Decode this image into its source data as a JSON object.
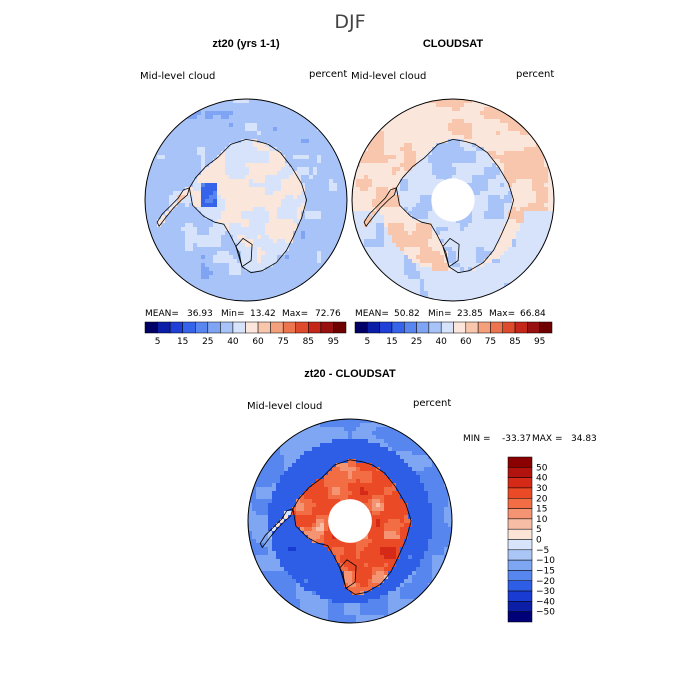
{
  "page_title": "DJF",
  "chart_data": [
    {
      "type": "heatmap",
      "projection": "south-polar-stereographic",
      "title": "zt20 (yrs 1-1)",
      "left_label": "Mid-level cloud",
      "right_label": "percent",
      "stats": {
        "mean_label": "MEAN=",
        "mean": "36.93",
        "min_label": "Min=",
        "min": "13.42",
        "max_label": "Max=",
        "max": "72.76"
      },
      "colorbar": {
        "orientation": "horizontal",
        "levels": [
          5,
          10,
          15,
          20,
          25,
          30,
          40,
          50,
          60,
          70,
          75,
          80,
          85,
          90,
          95
        ],
        "tick_labels": [
          "5",
          "15",
          "25",
          "40",
          "60",
          "75",
          "85",
          "95"
        ],
        "colors": [
          "#000066",
          "#0a1ea8",
          "#1f3fd6",
          "#3563ea",
          "#5a86f0",
          "#7ea4f3",
          "#a8c3f7",
          "#d6e3fb",
          "#fbe6dc",
          "#f8c6ad",
          "#f4a07c",
          "#ec7550",
          "#de4a2c",
          "#c4261a",
          "#981010",
          "#6e0000"
        ]
      },
      "field_description": "mostly 25-40 percent over ocean, 40-60 over East Antarctic plateau",
      "no_data_hole": false
    },
    {
      "type": "heatmap",
      "projection": "south-polar-stereographic",
      "title": "CLOUDSAT",
      "left_label": "Mid-level cloud",
      "right_label": "percent",
      "stats": {
        "mean_label": "MEAN=",
        "mean": "50.82",
        "min_label": "Min=",
        "min": "23.85",
        "max_label": "Max=",
        "max": "66.84"
      },
      "colorbar": {
        "orientation": "horizontal",
        "levels": [
          5,
          10,
          15,
          20,
          25,
          30,
          40,
          50,
          60,
          70,
          75,
          80,
          85,
          90,
          95
        ],
        "tick_labels": [
          "5",
          "15",
          "25",
          "40",
          "60",
          "75",
          "85",
          "95"
        ],
        "colors": [
          "#000066",
          "#0a1ea8",
          "#1f3fd6",
          "#3563ea",
          "#5a86f0",
          "#7ea4f3",
          "#a8c3f7",
          "#d6e3fb",
          "#fbe6dc",
          "#f8c6ad",
          "#f4a07c",
          "#ec7550",
          "#de4a2c",
          "#c4261a",
          "#981010",
          "#6e0000"
        ]
      },
      "field_description": "mostly 50-60 percent over ocean, 30-40 over East Antarctica, missing data poleward of about 82S",
      "no_data_hole": true
    },
    {
      "type": "heatmap",
      "projection": "south-polar-stereographic",
      "title": "zt20 - CLOUDSAT",
      "left_label": "Mid-level cloud",
      "right_label": "percent",
      "stats": {
        "min_label": "MIN =",
        "min": "-33.37",
        "max_label": "MAX =",
        "max": "34.83"
      },
      "colorbar": {
        "orientation": "vertical",
        "levels": [
          50,
          40,
          30,
          20,
          15,
          10,
          5,
          0,
          -5,
          -10,
          -15,
          -20,
          -30,
          -40,
          -50
        ],
        "tick_labels": [
          "50",
          "40",
          "30",
          "20",
          "15",
          "10",
          "5",
          "0",
          "−5",
          "−10",
          "−15",
          "−20",
          "−30",
          "−40",
          "−50"
        ],
        "colors_top_to_bottom": [
          "#8b0000",
          "#b3130f",
          "#d42a17",
          "#ea4a25",
          "#f26d44",
          "#f59472",
          "#f8bea5",
          "#fbe3d6",
          "#d7e4fb",
          "#aac6f6",
          "#7ea6f2",
          "#5786ee",
          "#2f5ee6",
          "#1a3bd2",
          "#0c1ea6",
          "#000077"
        ]
      },
      "field_description": "model minus CloudSat: -15 to -25 over ocean, +10 to +35 over East Antarctica",
      "no_data_hole": true
    }
  ]
}
